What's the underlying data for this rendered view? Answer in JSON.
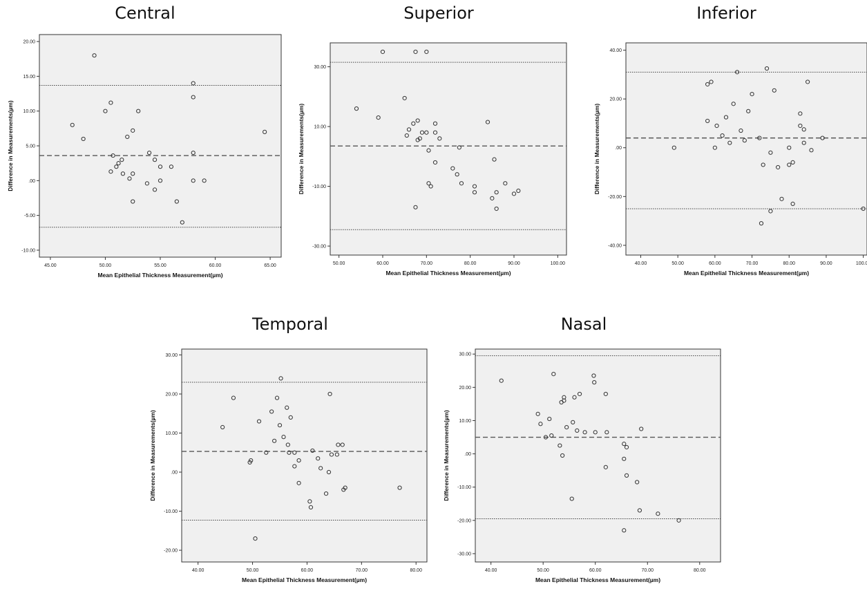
{
  "chart_data": [
    {
      "type": "scatter",
      "title": "Central",
      "xlabel": "Mean Epithelial Thickness Measurement(µm)",
      "ylabel": "Difference in Measurements(µm)",
      "xlim": [
        44,
        66
      ],
      "ylim": [
        -11,
        21
      ],
      "xticks": [
        45,
        50,
        55,
        60,
        65
      ],
      "xticklabels": [
        "45.00",
        "50.00",
        "55.00",
        "60.00",
        "65.00"
      ],
      "yticks": [
        -10,
        -5,
        0,
        5,
        10,
        15,
        20
      ],
      "yticklabels": [
        "-10.00",
        "-5.00",
        ".00",
        "5.00",
        "10.00",
        "15.00",
        "20.00"
      ],
      "mean_line": 3.6,
      "upper_loa": 13.7,
      "lower_loa": -6.7,
      "points": [
        [
          47,
          8
        ],
        [
          48,
          6
        ],
        [
          49,
          18
        ],
        [
          50,
          10
        ],
        [
          50.5,
          11.2
        ],
        [
          50.7,
          3.6
        ],
        [
          50.5,
          1.3
        ],
        [
          51,
          2
        ],
        [
          51.2,
          2.5
        ],
        [
          51.5,
          3
        ],
        [
          51.6,
          1
        ],
        [
          52,
          6.3
        ],
        [
          52.2,
          0.3
        ],
        [
          52.5,
          7.2
        ],
        [
          52.5,
          -3
        ],
        [
          52.5,
          1
        ],
        [
          53,
          10
        ],
        [
          53.8,
          -0.4
        ],
        [
          54,
          4
        ],
        [
          54.5,
          3
        ],
        [
          54.5,
          -1.3
        ],
        [
          55,
          0
        ],
        [
          55,
          2
        ],
        [
          56,
          2
        ],
        [
          56.5,
          -3
        ],
        [
          57,
          -6
        ],
        [
          58,
          14
        ],
        [
          58,
          12
        ],
        [
          58,
          4
        ],
        [
          58,
          0
        ],
        [
          59,
          0
        ],
        [
          64.5,
          7
        ]
      ]
    },
    {
      "type": "scatter",
      "title": "Superior",
      "xlabel": "Mean Epithelial Thickness Measurement(µm)",
      "ylabel": "Difference in Measurements(µm)",
      "xlim": [
        48,
        102
      ],
      "ylim": [
        -33,
        38
      ],
      "xticks": [
        50,
        60,
        70,
        80,
        90,
        100
      ],
      "xticklabels": [
        "50.00",
        "60.00",
        "70.00",
        "80.00",
        "90.00",
        "100.00"
      ],
      "yticks": [
        -30,
        -10,
        10,
        30
      ],
      "yticklabels": [
        "-30.00",
        "-10.00",
        "10.00",
        "30.00"
      ],
      "mean_line": 3.5,
      "upper_loa": 31.5,
      "lower_loa": -24.5,
      "points": [
        [
          54,
          16
        ],
        [
          59,
          13
        ],
        [
          60,
          35
        ],
        [
          65,
          19.5
        ],
        [
          65.5,
          7
        ],
        [
          66,
          9
        ],
        [
          67,
          11
        ],
        [
          67.5,
          -17
        ],
        [
          67.5,
          35
        ],
        [
          68,
          5.5
        ],
        [
          68,
          12
        ],
        [
          68.5,
          6
        ],
        [
          69,
          8
        ],
        [
          70,
          35
        ],
        [
          70,
          8
        ],
        [
          70.5,
          -9
        ],
        [
          70.5,
          2
        ],
        [
          71,
          -10
        ],
        [
          72,
          -2
        ],
        [
          72,
          11
        ],
        [
          72,
          8
        ],
        [
          73,
          6
        ],
        [
          76,
          -4
        ],
        [
          77,
          -6
        ],
        [
          77.5,
          3
        ],
        [
          78,
          -9
        ],
        [
          84,
          11.5
        ],
        [
          85,
          -14
        ],
        [
          85.5,
          -1
        ],
        [
          86,
          -12
        ],
        [
          86,
          -17.5
        ],
        [
          88,
          -9
        ],
        [
          90,
          -12.5
        ],
        [
          91,
          -11.5
        ],
        [
          81,
          -10
        ],
        [
          81,
          -12
        ]
      ]
    },
    {
      "type": "scatter",
      "title": "Inferior",
      "xlabel": "Mean Epithelial Thickness Measurement(µm)",
      "ylabel": "Difference in Measurements(µm)",
      "xlim": [
        36,
        101
      ],
      "ylim": [
        -44,
        43
      ],
      "xticks": [
        40,
        50,
        60,
        70,
        80,
        90,
        100
      ],
      "xticklabels": [
        "40.00",
        "50.00",
        "60.00",
        "70.00",
        "80.00",
        "90.00",
        "100.00"
      ],
      "yticks": [
        -40,
        -20,
        0,
        20,
        40
      ],
      "yticklabels": [
        "-40.00",
        "-20.00",
        ".00",
        "20.00",
        "40.00"
      ],
      "mean_line": 4,
      "upper_loa": 31,
      "lower_loa": -25,
      "points": [
        [
          49,
          0
        ],
        [
          58,
          26
        ],
        [
          58,
          11
        ],
        [
          59,
          27
        ],
        [
          60,
          0
        ],
        [
          60.5,
          9
        ],
        [
          62,
          5
        ],
        [
          63,
          12.5
        ],
        [
          64,
          2
        ],
        [
          65,
          18
        ],
        [
          66,
          31
        ],
        [
          67,
          7
        ],
        [
          68,
          3
        ],
        [
          69,
          15
        ],
        [
          70,
          22
        ],
        [
          72,
          4
        ],
        [
          72.5,
          -31
        ],
        [
          73,
          -7
        ],
        [
          74,
          32.5
        ],
        [
          75,
          -26
        ],
        [
          75,
          -2
        ],
        [
          76,
          23.5
        ],
        [
          77,
          -8
        ],
        [
          78,
          -21
        ],
        [
          80,
          0
        ],
        [
          80,
          -7
        ],
        [
          81,
          -23
        ],
        [
          81,
          -6
        ],
        [
          83,
          14
        ],
        [
          83,
          9
        ],
        [
          84,
          2
        ],
        [
          84,
          7.5
        ],
        [
          85,
          27
        ],
        [
          86,
          -1
        ],
        [
          89,
          4
        ],
        [
          100,
          -25
        ]
      ]
    },
    {
      "type": "scatter",
      "title": "Temporal",
      "xlabel": "Mean Epithelial Thickness Measurement(µm)",
      "ylabel": "Difference in Measurements(µm)",
      "xlim": [
        37,
        82
      ],
      "ylim": [
        -23,
        31.5
      ],
      "xticks": [
        40,
        50,
        60,
        70,
        80
      ],
      "xticklabels": [
        "40.00",
        "50.00",
        "60.00",
        "70.00",
        "80.00"
      ],
      "yticks": [
        -20,
        -10,
        0,
        10,
        20,
        30
      ],
      "yticklabels": [
        "-20.00",
        "-10.00",
        ".00",
        "10.00",
        "20.00",
        "30.00"
      ],
      "mean_line": 5.3,
      "upper_loa": 23,
      "lower_loa": -12.3,
      "points": [
        [
          44.5,
          11.5
        ],
        [
          46.5,
          19
        ],
        [
          49.5,
          2.5
        ],
        [
          49.7,
          3
        ],
        [
          50.5,
          -17
        ],
        [
          51.2,
          13
        ],
        [
          52.5,
          5
        ],
        [
          53.5,
          15.5
        ],
        [
          54,
          8
        ],
        [
          54.5,
          19
        ],
        [
          55,
          12
        ],
        [
          55.2,
          24
        ],
        [
          55.7,
          9
        ],
        [
          56.3,
          16.5
        ],
        [
          56.5,
          7
        ],
        [
          56.7,
          5
        ],
        [
          57,
          14
        ],
        [
          57.7,
          5
        ],
        [
          57.7,
          1.5
        ],
        [
          58.5,
          -2.8
        ],
        [
          58.5,
          3
        ],
        [
          60.5,
          -7.5
        ],
        [
          60.7,
          -9
        ],
        [
          61,
          5.5
        ],
        [
          62,
          3.5
        ],
        [
          62.5,
          1
        ],
        [
          63.5,
          -5.5
        ],
        [
          64,
          0
        ],
        [
          64.2,
          20
        ],
        [
          64.5,
          4.5
        ],
        [
          65.5,
          4.5
        ],
        [
          65.7,
          7
        ],
        [
          66.5,
          7
        ],
        [
          66.7,
          -4.5
        ],
        [
          67,
          -4
        ],
        [
          77,
          -4
        ]
      ]
    },
    {
      "type": "scatter",
      "title": "Nasal",
      "xlabel": "Mean Epithelial Thickness Measurement(µm)",
      "ylabel": "Difference in Measurements(µm)",
      "xlim": [
        37,
        84
      ],
      "ylim": [
        -32.5,
        31.5
      ],
      "xticks": [
        40,
        50,
        60,
        70,
        80
      ],
      "xticklabels": [
        "40.00",
        "50.00",
        "60.00",
        "70.00",
        "80.00"
      ],
      "yticks": [
        -30,
        -20,
        -10,
        0,
        10,
        20,
        30
      ],
      "yticklabels": [
        "-30.00",
        "-20.00",
        "-10.00",
        ".00",
        "10.00",
        "20.00",
        "30.00"
      ],
      "mean_line": 5,
      "upper_loa": 29.5,
      "lower_loa": -19.5,
      "points": [
        [
          42,
          22
        ],
        [
          49,
          12
        ],
        [
          49.5,
          9
        ],
        [
          50.5,
          5
        ],
        [
          51.2,
          10.5
        ],
        [
          51.6,
          5.5
        ],
        [
          52,
          24
        ],
        [
          53.2,
          2.5
        ],
        [
          53.5,
          15.5
        ],
        [
          53.7,
          -0.5
        ],
        [
          54,
          17
        ],
        [
          54,
          16
        ],
        [
          54.5,
          8
        ],
        [
          55.5,
          -13.5
        ],
        [
          55.7,
          9.5
        ],
        [
          56,
          17
        ],
        [
          56.5,
          7
        ],
        [
          57,
          18
        ],
        [
          58,
          6.5
        ],
        [
          59.7,
          23.5
        ],
        [
          59.8,
          21.5
        ],
        [
          60,
          6.5
        ],
        [
          62,
          18
        ],
        [
          62.2,
          6.5
        ],
        [
          62,
          -4
        ],
        [
          65.5,
          3
        ],
        [
          65.5,
          -1.5
        ],
        [
          65.5,
          -23
        ],
        [
          66,
          2
        ],
        [
          66,
          -6.5
        ],
        [
          68,
          -8.5
        ],
        [
          68.5,
          -17
        ],
        [
          68.8,
          7.5
        ],
        [
          72,
          -18
        ],
        [
          76,
          -20
        ]
      ]
    }
  ]
}
